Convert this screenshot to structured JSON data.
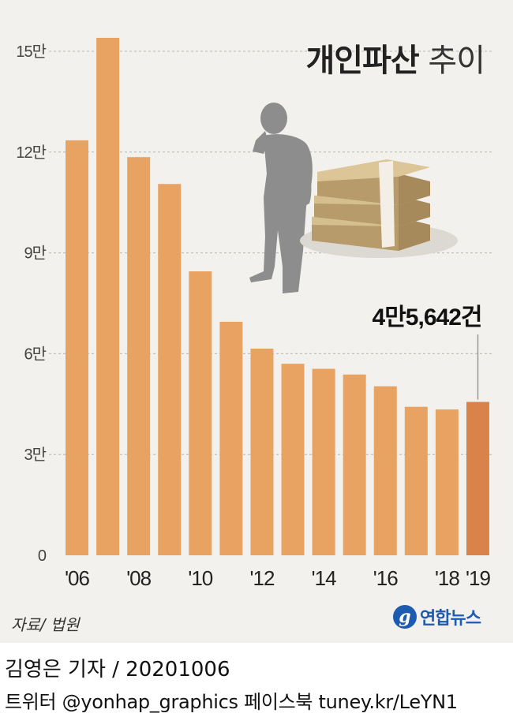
{
  "title_bold": "개인파산",
  "title_light": "추이",
  "annotation": "4만5,642건",
  "source": "자료/ 법원",
  "logo": {
    "mark": "g",
    "text": "연합뉴스"
  },
  "credit": "김영은 기자 / 20201006",
  "social": "트위터 @yonhap_graphics  페이스북 tuney.kr/LeYN1",
  "colors": {
    "bar": "#e8a261",
    "highlight": "#d9824a",
    "panel": "#f2f1ed",
    "grid": "#b9b6ae",
    "figure": "#8d8d8d"
  },
  "icons": [
    "businessman-silhouette-icon",
    "money-stack-icon"
  ],
  "chart_data": {
    "type": "bar",
    "categories": [
      "2006",
      "2007",
      "2008",
      "2009",
      "2010",
      "2011",
      "2012",
      "2013",
      "2014",
      "2015",
      "2016",
      "2017",
      "2018",
      "2019"
    ],
    "values": [
      123500,
      154000,
      118500,
      110500,
      84500,
      69500,
      61500,
      57000,
      55500,
      53800,
      50300,
      44200,
      43400,
      45642
    ],
    "highlight_index": 13,
    "ylim": [
      0,
      150000
    ],
    "yticks": [
      {
        "value": 0,
        "label": "0"
      },
      {
        "value": 30000,
        "label": "3만"
      },
      {
        "value": 60000,
        "label": "6만"
      },
      {
        "value": 90000,
        "label": "9만"
      },
      {
        "value": 120000,
        "label": "12만"
      },
      {
        "value": 150000,
        "label": "15만"
      }
    ],
    "xtick_labels": [
      {
        "index": 0,
        "label": "'06"
      },
      {
        "index": 2,
        "label": "'08"
      },
      {
        "index": 4,
        "label": "'10"
      },
      {
        "index": 6,
        "label": "'12"
      },
      {
        "index": 8,
        "label": "'14"
      },
      {
        "index": 10,
        "label": "'16"
      },
      {
        "index": 12,
        "label": "'18"
      },
      {
        "index": 13,
        "label": "'19"
      }
    ],
    "grid": true
  }
}
